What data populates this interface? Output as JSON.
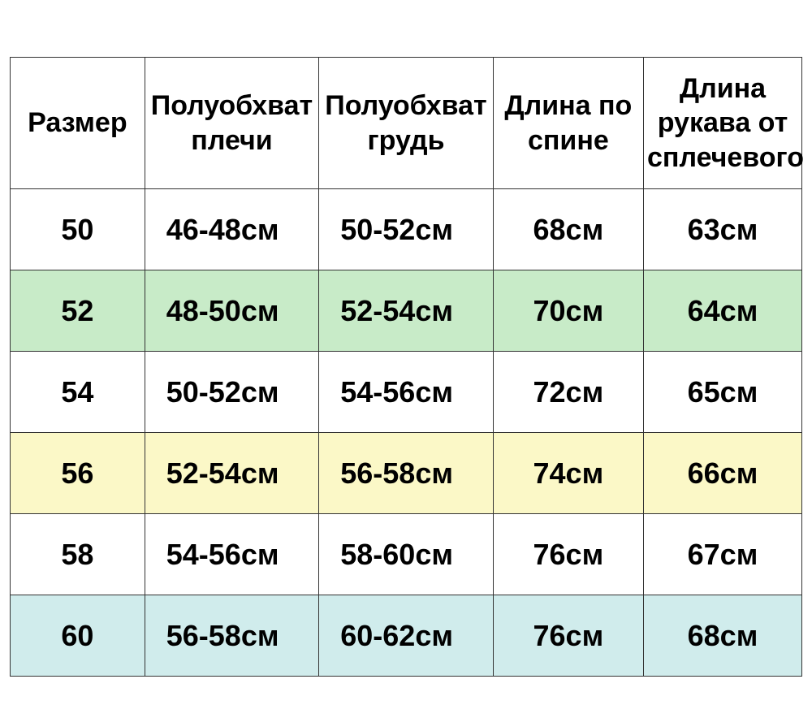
{
  "table": {
    "columns": [
      "Размер",
      "Полуобхват плечи",
      "Полуобхват грудь",
      "Длина  по спине",
      "Длина рукава от сплечевого"
    ],
    "rows": [
      {
        "size": "50",
        "shoulders": "46-48см",
        "chest": "50-52см",
        "back": "68см",
        "sleeve": "63см",
        "bg": "#ffffff"
      },
      {
        "size": "52",
        "shoulders": "48-50см",
        "chest": "52-54см",
        "back": "70см",
        "sleeve": "64см",
        "bg": "#c8ebc8"
      },
      {
        "size": "54",
        "shoulders": "50-52см",
        "chest": "54-56см",
        "back": "72см",
        "sleeve": "65см",
        "bg": "#ffffff"
      },
      {
        "size": "56",
        "shoulders": "52-54см",
        "chest": "56-58см",
        "back": "74см",
        "sleeve": "66см",
        "bg": "#fbf8c7"
      },
      {
        "size": "58",
        "shoulders": "54-56см",
        "chest": "58-60см",
        "back": "76см",
        "sleeve": "67см",
        "bg": "#ffffff"
      },
      {
        "size": "60",
        "shoulders": "56-58см",
        "chest": "60-62см",
        "back": "76см",
        "sleeve": "68см",
        "bg": "#d0ecec"
      }
    ],
    "border_color": "#333333",
    "header_fontsize": 34,
    "cell_fontsize": 36,
    "header_background": "#ffffff",
    "column_widths_pct": [
      17,
      22,
      22,
      19,
      20
    ]
  }
}
